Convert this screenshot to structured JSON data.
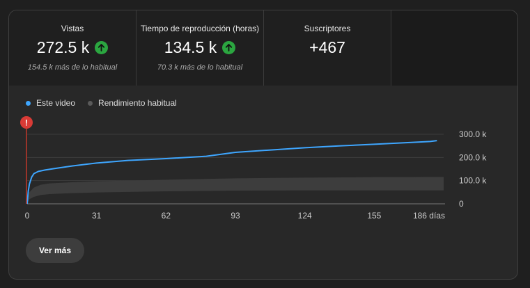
{
  "metrics": [
    {
      "label": "Vistas",
      "value": "272.5 k",
      "sub": "154.5 k más de lo habitual",
      "trend_icon": "arrow-up-icon"
    },
    {
      "label": "Tiempo de reproducción (horas)",
      "value": "134.5 k",
      "sub": "70.3 k más de lo habitual",
      "trend_icon": "arrow-up-icon"
    },
    {
      "label": "Suscriptores",
      "value": "+467"
    }
  ],
  "legend": [
    {
      "label": "Este video",
      "color": "#3ea6ff"
    },
    {
      "label": "Rendimiento habitual",
      "color": "#5a5a5a"
    }
  ],
  "alert_icon": "alert-icon",
  "chart_data": {
    "type": "line",
    "xlim": [
      0,
      186
    ],
    "ylim": [
      0,
      300000
    ],
    "x_ticks": [
      "0",
      "31",
      "62",
      "93",
      "124",
      "155",
      "186 días"
    ],
    "y_ticks": [
      "300.0 k",
      "200.0 k",
      "100.0 k",
      "0"
    ],
    "series": [
      {
        "name": "Este video",
        "color": "#3ea6ff",
        "x": [
          0,
          0.5,
          1,
          2,
          3,
          5,
          8,
          12,
          20,
          31,
          45,
          62,
          80,
          93,
          110,
          124,
          140,
          155,
          170,
          180,
          183
        ],
        "y": [
          0,
          55000,
          85000,
          115000,
          130000,
          140000,
          146000,
          152000,
          163000,
          176000,
          187000,
          195000,
          205000,
          222000,
          233000,
          242000,
          250000,
          257000,
          264000,
          269000,
          272500
        ]
      }
    ],
    "band": {
      "name": "Rendimiento habitual",
      "color": "#3d3d3d",
      "x": [
        0,
        1,
        3,
        6,
        10,
        20,
        31,
        62,
        93,
        124,
        155,
        186
      ],
      "low": [
        0,
        20000,
        30000,
        38000,
        42000,
        46000,
        49000,
        54000,
        57000,
        58000,
        58000,
        58000
      ],
      "high": [
        0,
        50000,
        70000,
        82000,
        88000,
        93000,
        97000,
        104000,
        110000,
        113000,
        115000,
        116000
      ]
    }
  },
  "button": {
    "label": "Ver más"
  }
}
